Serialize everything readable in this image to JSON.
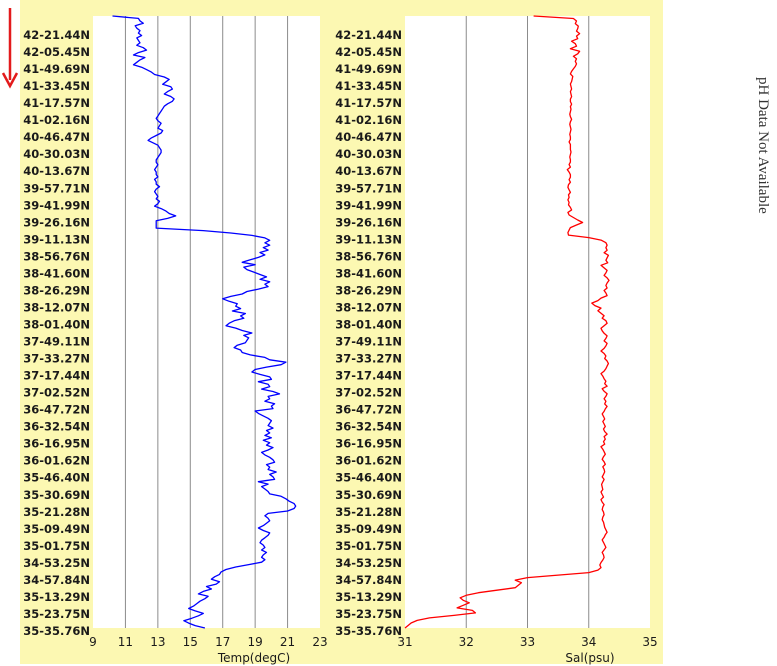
{
  "colors": {
    "panel_background": "#fcf8b2",
    "plot_background": "#ffffff",
    "grid": "#8c8c8c",
    "temperature_line": "#0000ff",
    "salinity_line": "#ff0000",
    "direction_arrow": "#e31a1c"
  },
  "icons": {
    "direction": "down-arrow-icon"
  },
  "side_note": "pH Data Not Available",
  "chart_data": [
    {
      "type": "line",
      "ylabel_ticks": [
        "42-21.44N",
        "42-05.45N",
        "41-49.69N",
        "41-33.45N",
        "41-17.57N",
        "41-02.16N",
        "40-46.47N",
        "40-30.03N",
        "40-13.67N",
        "39-57.71N",
        "39-41.99N",
        "39-26.16N",
        "39-11.13N",
        "38-56.76N",
        "38-41.60N",
        "38-26.29N",
        "38-12.07N",
        "38-01.40N",
        "37-49.11N",
        "37-33.27N",
        "37-17.44N",
        "37-02.52N",
        "36-47.72N",
        "36-32.54N",
        "36-16.95N",
        "36-01.62N",
        "35-46.40N",
        "35-30.69N",
        "35-21.28N",
        "35-09.49N",
        "35-01.75N",
        "34-53.25N",
        "34-57.84N",
        "35-13.29N",
        "35-23.75N",
        "35-35.76N"
      ],
      "xlabel": "Temp(degC)",
      "xlim": [
        9,
        23
      ],
      "xticks": [
        9,
        11,
        13,
        15,
        17,
        19,
        21,
        23
      ],
      "grid": true,
      "series": [
        {
          "values": [
            10.2,
            11.8,
            11.9,
            12.1,
            11.6,
            11.7,
            11.9,
            11.8,
            12.0,
            11.7,
            11.8,
            11.9,
            11.7,
            12.1,
            12.3,
            11.8,
            11.5,
            12.2,
            11.9,
            11.7,
            11.5,
            12.0,
            12.3,
            12.6,
            12.8,
            13.4,
            13.7,
            13.5,
            13.3,
            13.8,
            13.9,
            13.6,
            13.4,
            13.8,
            14.0,
            13.9,
            13.6,
            13.4,
            13.3,
            13.2,
            13.1,
            13.0,
            12.9,
            13.0,
            13.2,
            13.1,
            13.0,
            13.3,
            13.2,
            12.9,
            12.6,
            12.4,
            12.7,
            13.0,
            13.1,
            13.2,
            13.2,
            13.1,
            13.0,
            12.9,
            12.9,
            13.0,
            12.9,
            12.8,
            12.9,
            12.9,
            13.0,
            12.8,
            12.9,
            12.9,
            13.1,
            12.9,
            12.8,
            12.9,
            13.0,
            12.9,
            13.1,
            13.0,
            12.8,
            13.2,
            13.5,
            13.7,
            14.1,
            13.6,
            12.9,
            12.9,
            12.9,
            12.9,
            15.8,
            17.5,
            18.8,
            19.6,
            19.9,
            19.6,
            19.9,
            19.5,
            19.8,
            19.3,
            19.6,
            19.2,
            18.7,
            18.2,
            19.0,
            18.3,
            18.5,
            18.9,
            19.3,
            19.7,
            19.3,
            19.9,
            19.6,
            19.8,
            19.2,
            18.5,
            18.2,
            17.5,
            17.0,
            17.4,
            17.9,
            17.8,
            18.1,
            17.6,
            18.4,
            18.1,
            18.3,
            17.7,
            17.4,
            17.2,
            17.8,
            18.2,
            18.8,
            18.3,
            18.6,
            18.5,
            18.4,
            17.9,
            17.7,
            18.1,
            18.2,
            18.7,
            19.6,
            19.9,
            20.9,
            20.6,
            19.7,
            19.0,
            18.8,
            19.3,
            19.9,
            20.0,
            19.2,
            19.8,
            19.9,
            19.4,
            20.1,
            20.5,
            19.8,
            19.9,
            19.6,
            20.2,
            20.0,
            20.1,
            19.0,
            19.2,
            19.5,
            19.8,
            20.0,
            19.9,
            19.8,
            20.1,
            19.7,
            19.9,
            19.6,
            20.0,
            19.5,
            19.9,
            19.7,
            20.1,
            19.8,
            19.4,
            19.6,
            19.9,
            20.1,
            20.2,
            19.7,
            19.9,
            19.8,
            20.3,
            19.9,
            20.1,
            20.2,
            19.2,
            19.8,
            19.4,
            19.6,
            19.8,
            19.9,
            20.6,
            20.9,
            21.1,
            21.4,
            21.5,
            21.4,
            21.0,
            19.8,
            19.6,
            19.8,
            19.9,
            19.7,
            19.5,
            19.2,
            19.5,
            19.9,
            19.8,
            19.6,
            19.4,
            19.3,
            19.5,
            19.6,
            19.4,
            19.7,
            19.5,
            19.4,
            19.6,
            19.4,
            18.6,
            17.8,
            17.2,
            16.9,
            16.8,
            16.5,
            16.3,
            16.8,
            16.6,
            16.0,
            16.3,
            15.8,
            15.5,
            16.1,
            15.9,
            15.6,
            15.4,
            15.2,
            14.9,
            15.3,
            15.8,
            15.5,
            15.1,
            14.6,
            14.9,
            15.3,
            15.9
          ]
        }
      ]
    },
    {
      "type": "line",
      "ylabel_ticks": [
        "42-21.44N",
        "42-05.45N",
        "41-49.69N",
        "41-33.45N",
        "41-17.57N",
        "41-02.16N",
        "40-46.47N",
        "40-30.03N",
        "40-13.67N",
        "39-57.71N",
        "39-41.99N",
        "39-26.16N",
        "39-11.13N",
        "38-56.76N",
        "38-41.60N",
        "38-26.29N",
        "38-12.07N",
        "38-01.40N",
        "37-49.11N",
        "37-33.27N",
        "37-17.44N",
        "37-02.52N",
        "36-47.72N",
        "36-32.54N",
        "36-16.95N",
        "36-01.62N",
        "35-46.40N",
        "35-30.69N",
        "35-21.28N",
        "35-09.49N",
        "35-01.75N",
        "34-53.25N",
        "34-57.84N",
        "35-13.29N",
        "35-23.75N",
        "35-35.76N"
      ],
      "xlabel": "Sal(psu)",
      "xlim": [
        31,
        35
      ],
      "xticks": [
        31,
        32,
        33,
        34,
        35
      ],
      "grid": true,
      "series": [
        {
          "values": [
            33.1,
            33.75,
            33.8,
            33.78,
            33.83,
            33.82,
            33.8,
            33.85,
            33.8,
            33.82,
            33.72,
            33.78,
            33.8,
            33.7,
            33.85,
            33.82,
            33.75,
            33.8,
            33.78,
            33.8,
            33.78,
            33.75,
            33.72,
            33.7,
            33.74,
            33.73,
            33.72,
            33.7,
            33.71,
            33.72,
            33.7,
            33.71,
            33.72,
            33.7,
            33.7,
            33.72,
            33.7,
            33.71,
            33.7,
            33.69,
            33.7,
            33.72,
            33.7,
            33.69,
            33.7,
            33.71,
            33.7,
            33.69,
            33.7,
            33.7,
            33.68,
            33.7,
            33.7,
            33.7,
            33.71,
            33.7,
            33.69,
            33.7,
            33.7,
            33.68,
            33.7,
            33.65,
            33.68,
            33.7,
            33.7,
            33.68,
            33.7,
            33.67,
            33.66,
            33.68,
            33.7,
            33.67,
            33.68,
            33.66,
            33.68,
            33.67,
            33.7,
            33.72,
            33.66,
            33.68,
            33.75,
            33.82,
            33.9,
            33.8,
            33.7,
            33.68,
            33.66,
            33.67,
            34.0,
            34.2,
            34.28,
            34.3,
            34.28,
            34.3,
            34.25,
            34.32,
            34.3,
            34.28,
            34.31,
            34.2,
            34.25,
            34.3,
            34.28,
            34.25,
            34.3,
            34.33,
            34.3,
            34.28,
            34.3,
            34.25,
            34.28,
            34.3,
            34.2,
            34.15,
            34.05,
            34.1,
            34.2,
            34.15,
            34.2,
            34.25,
            34.22,
            34.28,
            34.3,
            34.25,
            34.2,
            34.22,
            34.25,
            34.3,
            34.28,
            34.25,
            34.3,
            34.28,
            34.25,
            34.2,
            34.25,
            34.28,
            34.26,
            34.3,
            34.32,
            34.3,
            34.28,
            34.25,
            34.2,
            34.23,
            34.25,
            34.28,
            34.26,
            34.3,
            34.22,
            34.25,
            34.3,
            34.28,
            34.25,
            34.28,
            34.26,
            34.3,
            34.27,
            34.25,
            34.22,
            34.24,
            34.26,
            34.23,
            34.25,
            34.27,
            34.24,
            34.26,
            34.3,
            34.25,
            34.27,
            34.24,
            34.26,
            34.2,
            34.23,
            34.25,
            34.27,
            34.24,
            34.22,
            34.25,
            34.27,
            34.23,
            34.25,
            34.26,
            34.24,
            34.22,
            34.25,
            34.23,
            34.21,
            34.22,
            34.23,
            34.2,
            34.22,
            34.24,
            34.2,
            34.22,
            34.25,
            34.23,
            34.22,
            34.24,
            34.25,
            34.23,
            34.22,
            34.24,
            34.25,
            34.26,
            34.28,
            34.3,
            34.27,
            34.25,
            34.22,
            34.24,
            34.26,
            34.28,
            34.25,
            34.22,
            34.24,
            34.25,
            34.23,
            34.2,
            34.18,
            34.2,
            34.15,
            34.0,
            33.5,
            33.0,
            32.8,
            32.9,
            32.85,
            32.8,
            32.5,
            32.2,
            32.0,
            31.9,
            31.95,
            32.05,
            31.95,
            31.85,
            32.1,
            32.15,
            31.8,
            31.4,
            31.2,
            31.1,
            31.05,
            31.0
          ]
        }
      ]
    }
  ]
}
